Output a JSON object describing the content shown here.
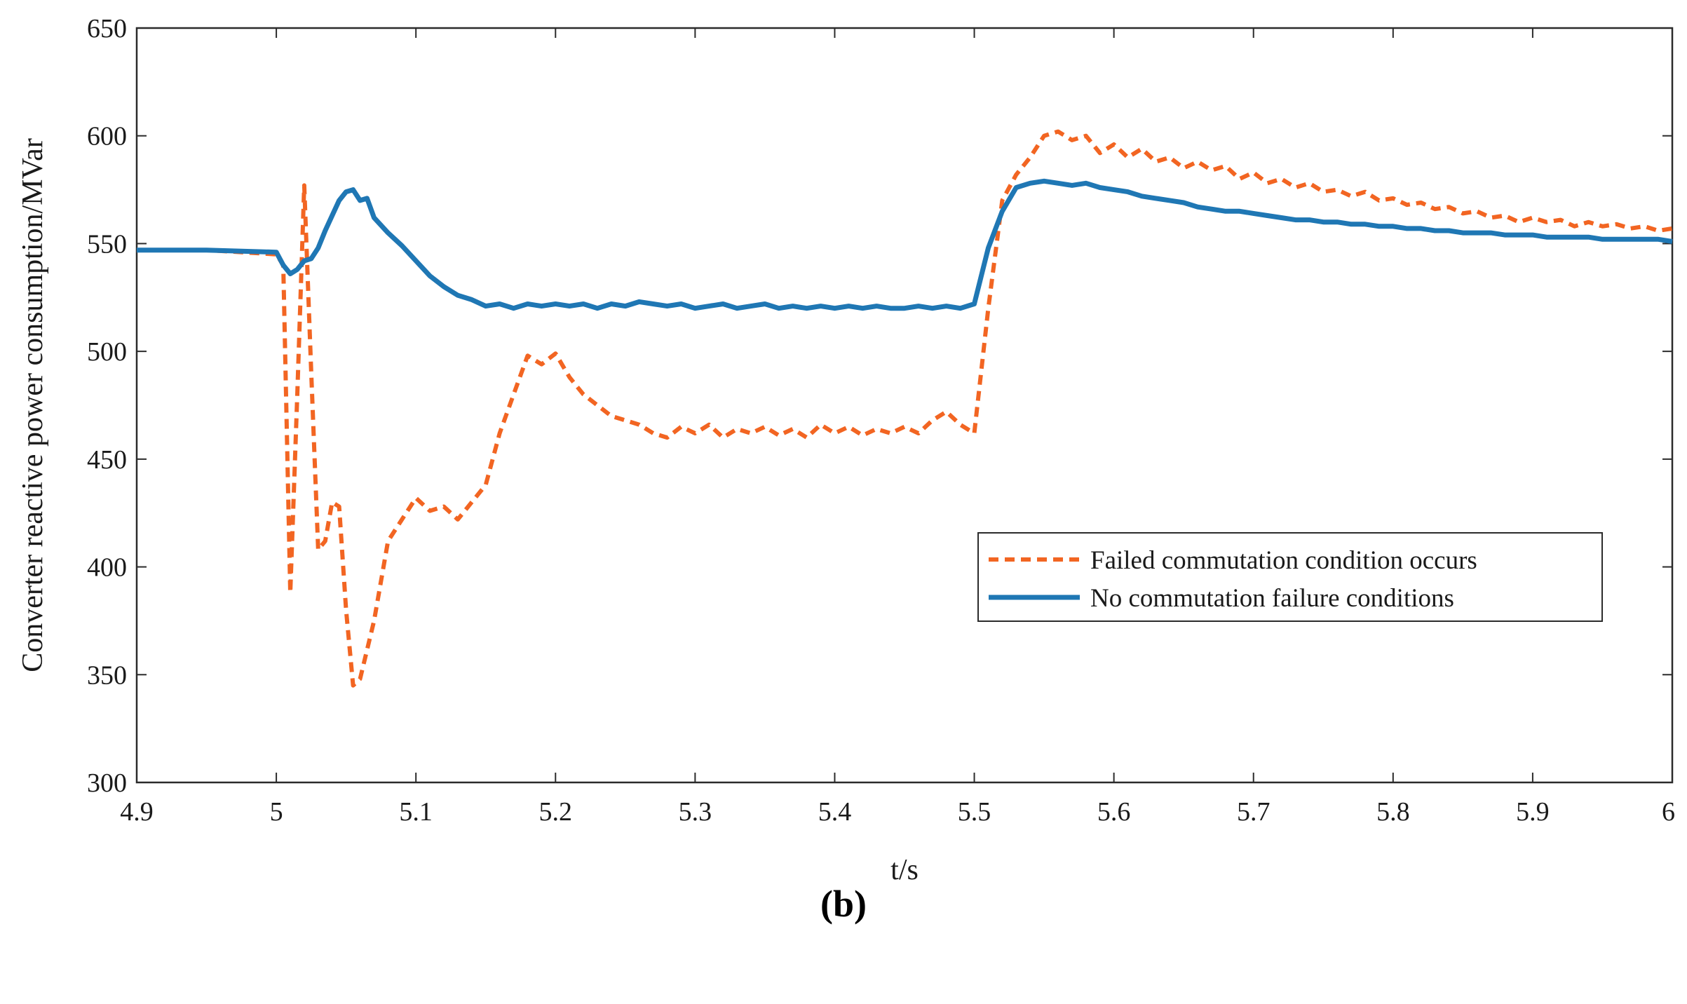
{
  "chart_data": {
    "type": "line",
    "title": "",
    "xlabel": "t/s",
    "ylabel": "Converter reactive power consumption/MVar",
    "xlim": [
      4.9,
      6.0
    ],
    "ylim": [
      300,
      650
    ],
    "xticks": [
      "4.9",
      "5",
      "5.1",
      "5.2",
      "5.3",
      "5.4",
      "5.5",
      "5.6",
      "5.7",
      "5.8",
      "5.9",
      "6"
    ],
    "yticks": [
      "300",
      "350",
      "400",
      "450",
      "500",
      "550",
      "600",
      "650"
    ],
    "grid": false,
    "legend_position": "bottom-right",
    "series": [
      {
        "name": "Failed commutation condition occurs",
        "color": "#f26522",
        "style": "dashed",
        "x": [
          4.9,
          4.95,
          5.0,
          5.005,
          5.01,
          5.015,
          5.02,
          5.025,
          5.03,
          5.035,
          5.04,
          5.045,
          5.05,
          5.055,
          5.06,
          5.07,
          5.08,
          5.09,
          5.1,
          5.11,
          5.12,
          5.13,
          5.14,
          5.15,
          5.16,
          5.17,
          5.18,
          5.19,
          5.2,
          5.21,
          5.22,
          5.23,
          5.24,
          5.25,
          5.26,
          5.27,
          5.28,
          5.29,
          5.3,
          5.31,
          5.32,
          5.33,
          5.34,
          5.35,
          5.36,
          5.37,
          5.38,
          5.39,
          5.4,
          5.41,
          5.42,
          5.43,
          5.44,
          5.45,
          5.46,
          5.47,
          5.48,
          5.49,
          5.5,
          5.51,
          5.52,
          5.53,
          5.54,
          5.55,
          5.56,
          5.57,
          5.58,
          5.59,
          5.6,
          5.61,
          5.62,
          5.63,
          5.64,
          5.65,
          5.66,
          5.67,
          5.68,
          5.69,
          5.7,
          5.71,
          5.72,
          5.73,
          5.74,
          5.75,
          5.76,
          5.77,
          5.78,
          5.79,
          5.8,
          5.81,
          5.82,
          5.83,
          5.84,
          5.85,
          5.86,
          5.87,
          5.88,
          5.89,
          5.9,
          5.91,
          5.92,
          5.93,
          5.94,
          5.95,
          5.96,
          5.97,
          5.98,
          5.99,
          6.0
        ],
        "y": [
          547,
          547,
          545,
          540,
          388,
          480,
          577,
          490,
          408,
          412,
          430,
          428,
          380,
          345,
          348,
          375,
          412,
          422,
          432,
          426,
          428,
          422,
          430,
          438,
          462,
          480,
          498,
          494,
          499,
          488,
          480,
          475,
          470,
          468,
          466,
          462,
          460,
          465,
          462,
          466,
          460,
          464,
          462,
          465,
          461,
          464,
          460,
          466,
          462,
          465,
          461,
          464,
          462,
          465,
          462,
          468,
          472,
          466,
          462,
          520,
          570,
          582,
          590,
          600,
          602,
          598,
          600,
          592,
          596,
          590,
          594,
          588,
          590,
          585,
          588,
          584,
          586,
          580,
          583,
          578,
          580,
          576,
          578,
          574,
          575,
          572,
          574,
          570,
          571,
          568,
          569,
          566,
          567,
          564,
          565,
          562,
          563,
          560,
          562,
          560,
          561,
          558,
          560,
          558,
          559,
          557,
          558,
          556,
          557
        ]
      },
      {
        "name": "No commutation failure conditions",
        "color": "#1f77b4",
        "style": "solid",
        "x": [
          4.9,
          4.95,
          5.0,
          5.005,
          5.01,
          5.015,
          5.02,
          5.025,
          5.03,
          5.035,
          5.04,
          5.045,
          5.05,
          5.055,
          5.06,
          5.065,
          5.07,
          5.08,
          5.09,
          5.1,
          5.11,
          5.12,
          5.13,
          5.14,
          5.15,
          5.16,
          5.17,
          5.18,
          5.19,
          5.2,
          5.21,
          5.22,
          5.23,
          5.24,
          5.25,
          5.26,
          5.27,
          5.28,
          5.29,
          5.3,
          5.31,
          5.32,
          5.33,
          5.34,
          5.35,
          5.36,
          5.37,
          5.38,
          5.39,
          5.4,
          5.41,
          5.42,
          5.43,
          5.44,
          5.45,
          5.46,
          5.47,
          5.48,
          5.49,
          5.5,
          5.505,
          5.51,
          5.52,
          5.53,
          5.54,
          5.55,
          5.56,
          5.57,
          5.58,
          5.59,
          5.6,
          5.61,
          5.62,
          5.63,
          5.64,
          5.65,
          5.66,
          5.67,
          5.68,
          5.69,
          5.7,
          5.71,
          5.72,
          5.73,
          5.74,
          5.75,
          5.76,
          5.77,
          5.78,
          5.79,
          5.8,
          5.81,
          5.82,
          5.83,
          5.84,
          5.85,
          5.86,
          5.87,
          5.88,
          5.89,
          5.9,
          5.91,
          5.92,
          5.93,
          5.94,
          5.95,
          5.96,
          5.97,
          5.98,
          5.99,
          6.0
        ],
        "y": [
          547,
          547,
          546,
          540,
          536,
          538,
          542,
          543,
          548,
          556,
          563,
          570,
          574,
          575,
          570,
          571,
          562,
          555,
          549,
          542,
          535,
          530,
          526,
          524,
          521,
          522,
          520,
          522,
          521,
          522,
          521,
          522,
          520,
          522,
          521,
          523,
          522,
          521,
          522,
          520,
          521,
          522,
          520,
          521,
          522,
          520,
          521,
          520,
          521,
          520,
          521,
          520,
          521,
          520,
          520,
          521,
          520,
          521,
          520,
          522,
          535,
          548,
          565,
          576,
          578,
          579,
          578,
          577,
          578,
          576,
          575,
          574,
          572,
          571,
          570,
          569,
          567,
          566,
          565,
          565,
          564,
          563,
          562,
          561,
          561,
          560,
          560,
          559,
          559,
          558,
          558,
          557,
          557,
          556,
          556,
          555,
          555,
          555,
          554,
          554,
          554,
          553,
          553,
          553,
          553,
          552,
          552,
          552,
          552,
          552,
          551
        ]
      }
    ]
  },
  "panel_label": "(b)"
}
